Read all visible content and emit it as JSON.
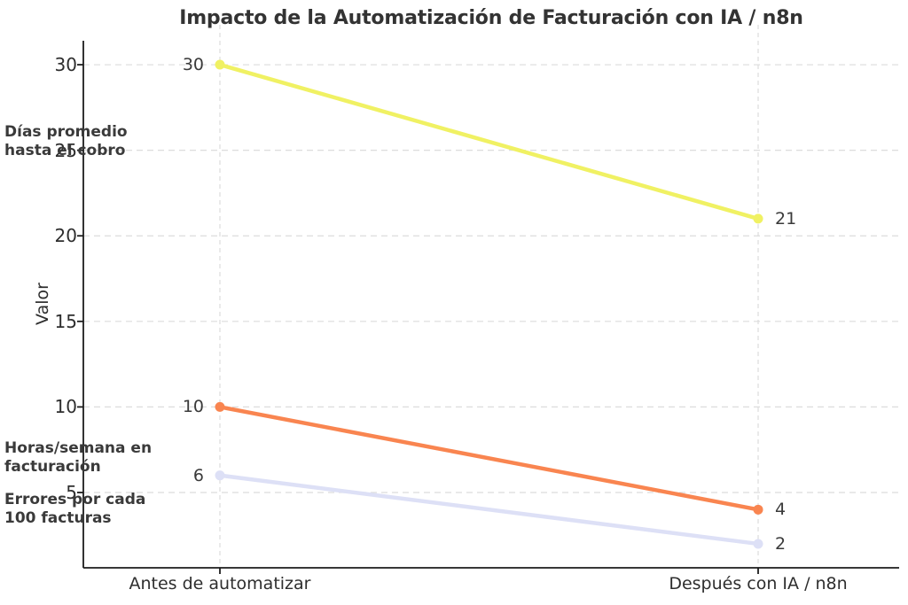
{
  "chart_data": {
    "type": "line",
    "title": "Impacto de la Automatización de Facturación con IA / n8n",
    "xlabel": "",
    "ylabel": "Valor",
    "categories": [
      "Antes de automatizar",
      "Después con IA / n8n"
    ],
    "yticks": [
      5,
      10,
      15,
      20,
      25,
      30
    ],
    "ylim": [
      0.6,
      31.4
    ],
    "grid": true,
    "legend_position": "none",
    "series": [
      {
        "name": "Días promedio hasta el cobro",
        "label_lines": [
          "Días promedio",
          "hasta el cobro"
        ],
        "values": [
          30,
          21
        ],
        "point_labels": [
          "30",
          "21"
        ],
        "color": "#f0f163"
      },
      {
        "name": "Horas/semana en facturación",
        "label_lines": [
          "Horas/semana en",
          "facturación"
        ],
        "values": [
          10,
          4
        ],
        "point_labels": [
          "10",
          "4"
        ],
        "color": "#f98550"
      },
      {
        "name": "Errores por cada 100 facturas",
        "label_lines": [
          "Errores por cada",
          "100 facturas"
        ],
        "values": [
          6,
          2
        ],
        "point_labels": [
          "6",
          "2"
        ],
        "color": "#dde0f6"
      }
    ],
    "colors": {
      "axis": "#1c1c1c",
      "grid": "#dcdcdc",
      "text": "#2e2e2e",
      "title": "#333333"
    }
  }
}
